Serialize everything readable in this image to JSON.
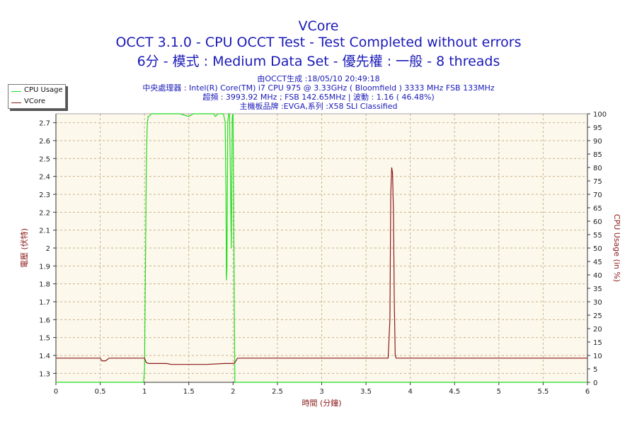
{
  "header": {
    "title": "VCore",
    "subtitle1": "OCCT 3.1.0 - CPU OCCT Test - Test Completed without errors",
    "subtitle2": "6分 - 模式 : Medium Data Set - 優先權 : 一般 - 8 threads",
    "info": [
      "由OCCT生成 :18/05/10 20:49:18",
      "中央處理器 : Intel(R) Core(TM) i7 CPU 975 @ 3.33GHz ( Bloomfield ) 3333 MHz FSB 133MHz",
      "超頻 : 3993.92 MHz ; FSB 142.65MHz | 波動 : 1.16 ( 46.48%)",
      "主機板品牌 :EVGA,系列 :X58 SLI Classified"
    ]
  },
  "colors": {
    "title": "#1a1ab8",
    "cpu_usage": "#22dd22",
    "vcore": "#8b1a1a",
    "plot_bg": "#fdf8ec",
    "grid": "#c8b48c"
  },
  "chart_data": {
    "type": "line",
    "title": "VCore",
    "xlabel": "時間 (分鐘)",
    "ylabel_left": "電壓 (伏特)",
    "ylabel_right": "CPU Usage (in %)",
    "xlim": [
      0,
      6
    ],
    "ylim_left": [
      1.25,
      2.75
    ],
    "ylim_right": [
      0,
      100
    ],
    "x_ticks": [
      "0",
      "0.5",
      "1",
      "1.5",
      "2",
      "2.5",
      "3",
      "3.5",
      "4",
      "4.5",
      "5",
      "5.5",
      "6"
    ],
    "y_left_ticks": [
      "1.3",
      "1.4",
      "1.5",
      "1.6",
      "1.7",
      "1.8",
      "1.9",
      "2",
      "2.1",
      "2.2",
      "2.3",
      "2.4",
      "2.5",
      "2.6",
      "2.7"
    ],
    "y_right_ticks": [
      "0",
      "5",
      "10",
      "15",
      "20",
      "25",
      "30",
      "35",
      "40",
      "45",
      "50",
      "55",
      "60",
      "65",
      "70",
      "75",
      "80",
      "85",
      "90",
      "95",
      "100"
    ],
    "grid": true,
    "legend_position": "top-left",
    "series": [
      {
        "name": "CPU Usage",
        "axis": "right",
        "x": [
          0,
          0.99,
          1.0,
          1.01,
          1.02,
          1.03,
          1.04,
          1.05,
          1.08,
          1.2,
          1.4,
          1.5,
          1.55,
          1.6,
          1.7,
          1.78,
          1.8,
          1.83,
          1.86,
          1.89,
          1.91,
          1.92,
          1.925,
          1.93,
          1.94,
          1.95,
          1.96,
          1.97,
          1.98,
          1.99,
          2.0,
          2.02,
          6
        ],
        "values": [
          0,
          0,
          5,
          40,
          80,
          95,
          99,
          99,
          100,
          100,
          100,
          99,
          100,
          100,
          100,
          100,
          99,
          100,
          100,
          100,
          97,
          70,
          38,
          42,
          97,
          100,
          100,
          75,
          50,
          99,
          100,
          0,
          0
        ]
      },
      {
        "name": "VCore",
        "axis": "left",
        "x": [
          0,
          0.5,
          0.52,
          0.56,
          0.6,
          1.0,
          1.02,
          1.05,
          1.25,
          1.3,
          1.5,
          1.7,
          1.9,
          2.0,
          2.02,
          2.05,
          2.1,
          3.75,
          3.77,
          3.78,
          3.79,
          3.8,
          3.81,
          3.82,
          3.83,
          3.84,
          6
        ],
        "values": [
          1.385,
          1.385,
          1.37,
          1.37,
          1.385,
          1.385,
          1.36,
          1.355,
          1.355,
          1.35,
          1.35,
          1.35,
          1.355,
          1.355,
          1.36,
          1.385,
          1.385,
          1.385,
          1.6,
          2.3,
          2.45,
          2.42,
          2.2,
          1.7,
          1.4,
          1.385,
          1.385
        ]
      }
    ]
  }
}
